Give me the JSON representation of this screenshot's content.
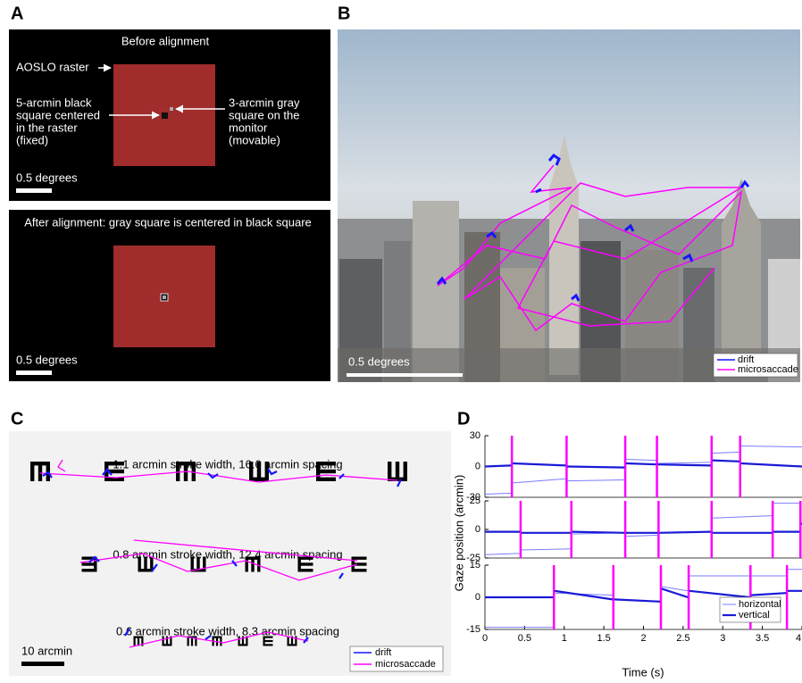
{
  "panels": {
    "A": {
      "label": "A",
      "top_title": "Before alignment",
      "raster_label": "AOSLO raster",
      "black_label": [
        "5-arcmin black",
        "square centered",
        "in the raster",
        "(fixed)"
      ],
      "gray_label": [
        "3-arcmin gray",
        "square on the",
        "monitor",
        "(movable)"
      ],
      "scale": "0.5 degrees",
      "bottom_title": "After alignment: gray square is centered in black square",
      "bottom_scale": "0.5 degrees"
    },
    "B": {
      "label": "B",
      "scale": "0.5 degrees",
      "legend": [
        "drift",
        "microsaccade"
      ]
    },
    "C": {
      "label": "C",
      "rows": [
        "1.1 arcmin stroke width, 16.6 arcmin spacing",
        "0.8 arcmin stroke width, 12.4 arcmin spacing",
        "0.6 arcmin stroke width, 8.3 arcmin spacing"
      ],
      "scale": "10 arcmin",
      "legend": [
        "drift",
        "microsaccade"
      ]
    },
    "D": {
      "label": "D",
      "ylabel": "Gaze position (arcmin)",
      "xlabel": "Time (s)"
    }
  },
  "chart_data": [
    {
      "type": "line",
      "xlim": [
        0,
        4
      ],
      "ylim": [
        -30,
        30
      ],
      "yticks": [
        -30,
        0,
        30
      ],
      "event_color": "#ff00ff",
      "events": [
        0.34,
        1.03,
        1.77,
        2.17,
        2.86,
        3.22
      ],
      "x": [
        0,
        0.33,
        0.34,
        0.35,
        1.02,
        1.03,
        1.04,
        1.76,
        1.77,
        1.78,
        2.16,
        2.17,
        2.18,
        2.85,
        2.86,
        2.87,
        3.21,
        3.22,
        3.23,
        4
      ],
      "series": [
        {
          "color": "#7b7bff",
          "width": 1,
          "values": [
            -27,
            -26,
            null,
            -16,
            -12,
            null,
            -14,
            -13,
            null,
            7,
            6,
            null,
            3,
            4,
            null,
            13,
            14,
            null,
            20,
            19
          ]
        },
        {
          "color": "#1a1ad6",
          "width": 2.2,
          "values": [
            0,
            1,
            null,
            3,
            1,
            null,
            0,
            -1,
            null,
            3,
            2,
            null,
            2,
            1,
            null,
            6,
            5,
            null,
            3,
            0
          ]
        }
      ]
    },
    {
      "type": "line",
      "xlim": [
        0,
        4
      ],
      "ylim": [
        -25,
        25
      ],
      "yticks": [
        -25,
        0,
        25
      ],
      "event_color": "#ff00ff",
      "events": [
        0.45,
        1.09,
        1.77,
        2.19,
        2.86,
        3.63,
        3.98
      ],
      "x": [
        0,
        0.44,
        0.45,
        0.46,
        1.08,
        1.09,
        1.1,
        1.76,
        1.77,
        1.78,
        2.18,
        2.19,
        2.2,
        2.85,
        2.86,
        2.87,
        3.62,
        3.63,
        3.64,
        3.97,
        3.98,
        3.99,
        4
      ],
      "series": [
        {
          "color": "#7b7bff",
          "width": 1,
          "values": [
            -22,
            -21,
            null,
            -18,
            -17,
            null,
            -4,
            -3,
            null,
            -6,
            -5,
            null,
            -3,
            -2,
            null,
            10,
            12,
            null,
            23,
            23,
            null,
            5,
            5
          ]
        },
        {
          "color": "#1a1ad6",
          "width": 2.2,
          "values": [
            -2,
            -2,
            null,
            -3,
            -3,
            null,
            -2,
            -3,
            null,
            -3,
            -3,
            null,
            -3,
            -2,
            null,
            -3,
            -3,
            null,
            -2,
            -2,
            null,
            5,
            5
          ]
        }
      ]
    },
    {
      "type": "line",
      "xlim": [
        0,
        4
      ],
      "ylim": [
        -15,
        15
      ],
      "yticks": [
        -15,
        0,
        15
      ],
      "xticks": [
        0,
        0.5,
        1,
        1.5,
        2,
        2.5,
        3,
        3.5,
        4
      ],
      "event_color": "#ff00ff",
      "events": [
        0.87,
        1.62,
        2.22,
        2.57,
        3.35,
        3.81
      ],
      "x": [
        0,
        0.86,
        0.87,
        0.88,
        1.61,
        1.62,
        1.63,
        2.21,
        2.22,
        2.23,
        2.56,
        2.57,
        2.58,
        3.34,
        3.35,
        3.36,
        3.8,
        3.81,
        3.82,
        4
      ],
      "series": [
        {
          "name": "horizontal",
          "color": "#7b7bff",
          "width": 1,
          "values": [
            -14,
            -14,
            null,
            2,
            1,
            null,
            -1,
            -2,
            null,
            5,
            3,
            null,
            10,
            10,
            null,
            10,
            10,
            null,
            13,
            13
          ]
        },
        {
          "name": "vertical",
          "color": "#1a1ad6",
          "width": 2.2,
          "values": [
            0,
            0,
            null,
            3,
            -1,
            null,
            -1,
            -2,
            null,
            4,
            0,
            null,
            3,
            0,
            null,
            1,
            2,
            null,
            3,
            3
          ]
        }
      ]
    }
  ]
}
